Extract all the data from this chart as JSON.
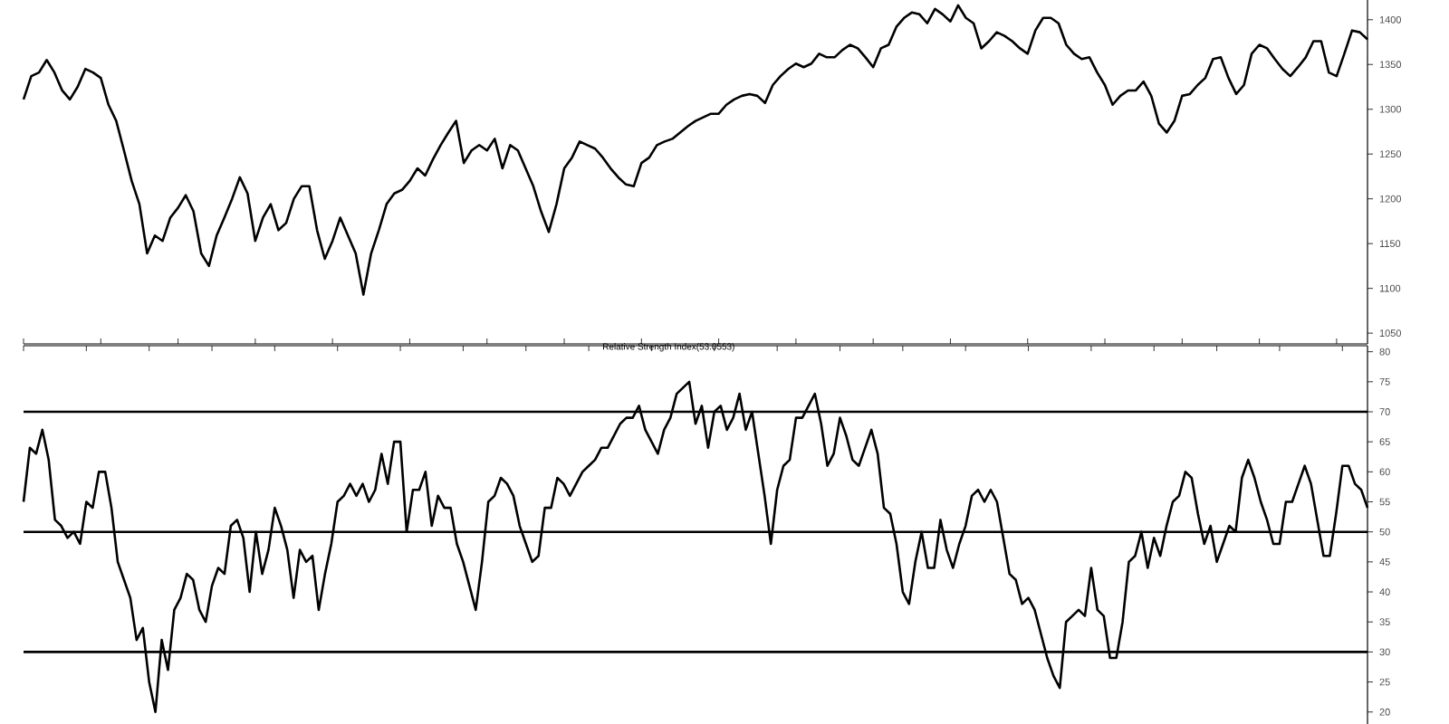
{
  "chart_data": [
    {
      "type": "line",
      "tick_labels": "y",
      "ylim": [
        1038,
        1422
      ],
      "yticks": [
        1050,
        1100,
        1150,
        1200,
        1250,
        1300,
        1350,
        1400
      ],
      "categories": [
        null,
        null,
        null,
        null,
        null,
        null,
        null,
        null,
        null,
        null,
        null,
        null,
        null,
        null,
        null,
        null,
        null,
        null,
        null,
        null,
        null,
        null,
        null,
        null,
        null,
        null,
        null,
        null,
        null,
        null,
        null,
        null,
        null,
        null,
        null,
        null,
        null,
        null,
        null,
        null,
        null,
        null,
        null,
        null,
        null,
        null,
        null,
        null,
        null,
        null,
        null,
        null,
        null,
        null,
        null,
        null,
        null,
        null,
        null,
        null,
        null,
        null,
        null,
        null,
        null,
        null,
        null,
        null,
        null,
        null,
        null,
        null,
        null,
        null,
        null,
        null,
        null,
        null,
        null,
        null,
        null,
        null,
        null,
        null,
        null,
        null,
        null,
        null,
        null,
        null,
        null,
        null,
        null,
        null,
        null,
        null,
        null,
        null,
        null,
        null,
        null,
        null,
        null,
        null,
        null,
        null,
        null,
        null,
        null,
        null,
        null,
        null,
        null,
        null,
        null,
        null,
        null,
        null,
        null,
        null,
        null,
        null,
        null,
        null,
        null,
        null,
        null,
        null,
        null,
        null,
        null,
        null,
        null,
        null,
        null,
        null,
        null,
        null,
        null,
        null,
        null,
        null,
        null,
        null,
        null,
        null,
        null,
        null,
        null,
        null,
        null,
        null,
        null,
        null,
        null,
        null,
        null,
        null,
        null,
        null,
        null,
        null,
        null,
        null,
        null,
        null,
        null,
        null,
        null,
        null,
        null,
        null,
        null,
        null,
        null
      ],
      "series": [
        {
          "color": "#000000",
          "values": [
            1311,
            1337,
            1341,
            1355,
            1341,
            1321,
            1311,
            1325,
            1345,
            1341,
            1335,
            1305,
            1287,
            1254,
            1220,
            1194,
            1139,
            1159,
            1153,
            1179,
            1190,
            1204,
            1186,
            1139,
            1125,
            1159,
            1179,
            1200,
            1224,
            1206,
            1153,
            1179,
            1194,
            1165,
            1173,
            1200,
            1214,
            1214,
            1165,
            1133,
            1153,
            1179,
            1159,
            1139,
            1093,
            1139,
            1165,
            1194,
            1206,
            1210,
            1220,
            1234,
            1226,
            1244,
            1260,
            1274,
            1287,
            1240,
            1254,
            1260,
            1254,
            1267,
            1234,
            1260,
            1254,
            1234,
            1214,
            1186,
            1163,
            1194,
            1234,
            1246,
            1264,
            1260,
            1256,
            1246,
            1234,
            1224,
            1216,
            1214,
            1240,
            1246,
            1260,
            1264,
            1267,
            1274,
            1281,
            1287,
            1291,
            1295,
            1295,
            1305,
            1311,
            1315,
            1317,
            1315,
            1307,
            1327,
            1337,
            1345,
            1351,
            1347,
            1351,
            1362,
            1358,
            1358,
            1366,
            1372,
            1368,
            1358,
            1347,
            1368,
            1372,
            1392,
            1402,
            1408,
            1406,
            1396,
            1412,
            1406,
            1398,
            1416,
            1402,
            1396,
            1368,
            1376,
            1386,
            1382,
            1376,
            1368,
            1362,
            1388,
            1402,
            1402,
            1396,
            1372,
            1362,
            1356,
            1358,
            1341,
            1327,
            1305,
            1315,
            1321,
            1321,
            1331,
            1315,
            1284,
            1274,
            1287,
            1315,
            1317,
            1327,
            1335,
            1356,
            1358,
            1335,
            1317,
            1327,
            1362,
            1372,
            1368,
            1356,
            1345,
            1337,
            1347,
            1358,
            1376,
            1376,
            1341,
            1337,
            1362,
            1388,
            1386,
            1378
          ]
        }
      ]
    },
    {
      "type": "line",
      "title": "Relative Strength Index(53.0553)",
      "tick_labels": "y",
      "ylim": [
        18,
        81
      ],
      "yticks": [
        20,
        25,
        30,
        35,
        40,
        45,
        50,
        55,
        60,
        65,
        70,
        75,
        80
      ],
      "categories": [
        null,
        null,
        null,
        null,
        null,
        null,
        null,
        null,
        null,
        null,
        null,
        null,
        null,
        null,
        null,
        null,
        null,
        null,
        null,
        null,
        null,
        null,
        null,
        null,
        null,
        null,
        null,
        null,
        null,
        null,
        null,
        null,
        null,
        null,
        null,
        null,
        null,
        null,
        null,
        null,
        null,
        null,
        null,
        null,
        null,
        null,
        null,
        null,
        null,
        null,
        null,
        null,
        null,
        null,
        null,
        null,
        null,
        null,
        null,
        null,
        null,
        null,
        null,
        null,
        null,
        null,
        null,
        null,
        null,
        null,
        null,
        null,
        null,
        null,
        null,
        null,
        null,
        null,
        null,
        null,
        null,
        null,
        null,
        null,
        null,
        null,
        null,
        null,
        null,
        null,
        null,
        null,
        null,
        null,
        null,
        null,
        null,
        null,
        null,
        null,
        null,
        null,
        null,
        null,
        null,
        null,
        null,
        null,
        null,
        null,
        null,
        null,
        null,
        null,
        null,
        null,
        null,
        null,
        null,
        null,
        null,
        null,
        null,
        null,
        null,
        null,
        null,
        null,
        null,
        null,
        null,
        null,
        null,
        null,
        null,
        null,
        null,
        null,
        null,
        null,
        null,
        null,
        null,
        null,
        null,
        null,
        null,
        null,
        null,
        null,
        null,
        null,
        null,
        null,
        null,
        null,
        null,
        null,
        null,
        null,
        null,
        null,
        null,
        null,
        null,
        null,
        null,
        null,
        null,
        null,
        null,
        null,
        null,
        null,
        null,
        null,
        null,
        null,
        null,
        null,
        null,
        null,
        null,
        null,
        null,
        null,
        null,
        null,
        null,
        null,
        null,
        null,
        null,
        null,
        null,
        null,
        null,
        null,
        null,
        null,
        null,
        null,
        null,
        null,
        null,
        null,
        null,
        null,
        null,
        null,
        null,
        null,
        null,
        null,
        null
      ],
      "series": [
        {
          "color": "#000000",
          "values": [
            55,
            64,
            63,
            67,
            62,
            52,
            51,
            49,
            50,
            48,
            55,
            54,
            60,
            60,
            54,
            45,
            42,
            39,
            32,
            34,
            25,
            20,
            32,
            27,
            37,
            39,
            43,
            42,
            37,
            35,
            41,
            44,
            43,
            51,
            52,
            49,
            40,
            50,
            43,
            47,
            54,
            51,
            47,
            39,
            47,
            45,
            46,
            37,
            43,
            48,
            55,
            56,
            58,
            56,
            58,
            55,
            57,
            63,
            58,
            65,
            65,
            50,
            57,
            57,
            60,
            51,
            56,
            54,
            54,
            48,
            45,
            41,
            37,
            45,
            55,
            56,
            59,
            58,
            56,
            51,
            48,
            45,
            46,
            54,
            54,
            59,
            58,
            56,
            58,
            60,
            61,
            62,
            64,
            64,
            66,
            68,
            69,
            69,
            71,
            67,
            65,
            63,
            67,
            69,
            73,
            74,
            75,
            68,
            71,
            64,
            70,
            71,
            67,
            69,
            73,
            67,
            70,
            63,
            56,
            48,
            57,
            61,
            62,
            69,
            69,
            71,
            73,
            68,
            61,
            63,
            69,
            66,
            62,
            61,
            64,
            67,
            63,
            54,
            53,
            48,
            40,
            38,
            45,
            50,
            44,
            44,
            52,
            47,
            44,
            48,
            51,
            56,
            57,
            55,
            57,
            55,
            49,
            43,
            42,
            38,
            39,
            37,
            33,
            29,
            26,
            24,
            35,
            36,
            37,
            36,
            44,
            37,
            36,
            29,
            29,
            35,
            45,
            46,
            50,
            44,
            49,
            46,
            51,
            55,
            56,
            60,
            59,
            53,
            48,
            51,
            45,
            48,
            51,
            50,
            59,
            62,
            59,
            55,
            52,
            48,
            48,
            55,
            55,
            58,
            61,
            58,
            52,
            46,
            46,
            53,
            61,
            61,
            58,
            57,
            54
          ]
        }
      ],
      "ref_lines": [
        {
          "axis": "y",
          "value": 30,
          "color": "#000000"
        },
        {
          "axis": "y",
          "value": 50,
          "color": "#000000"
        },
        {
          "axis": "y",
          "value": 70,
          "color": "#000000"
        }
      ]
    }
  ]
}
